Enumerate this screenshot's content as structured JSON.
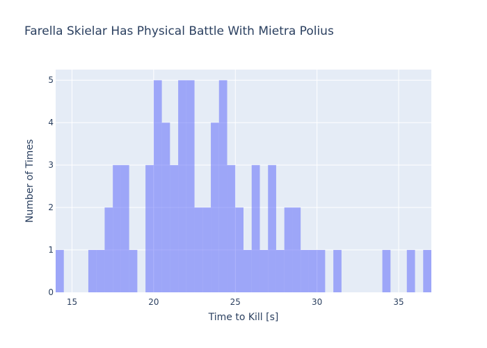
{
  "chart_data": {
    "type": "bar",
    "title": "Farella Skielar Has Physical Battle With Mietra Polius",
    "xlabel": "Time to Kill [s]",
    "ylabel": "Number of Times",
    "xlim": [
      14,
      37
    ],
    "ylim": [
      0,
      5.25
    ],
    "xticks": [
      15,
      20,
      25,
      30,
      35
    ],
    "yticks": [
      0,
      1,
      2,
      3,
      4,
      5
    ],
    "bin_width": 0.5,
    "grid": true,
    "bins": [
      {
        "x0": 14.0,
        "count": 1
      },
      {
        "x0": 16.0,
        "count": 1
      },
      {
        "x0": 16.5,
        "count": 1
      },
      {
        "x0": 17.0,
        "count": 2
      },
      {
        "x0": 17.5,
        "count": 3
      },
      {
        "x0": 18.0,
        "count": 3
      },
      {
        "x0": 18.5,
        "count": 1
      },
      {
        "x0": 19.5,
        "count": 3
      },
      {
        "x0": 20.0,
        "count": 5
      },
      {
        "x0": 20.5,
        "count": 4
      },
      {
        "x0": 21.0,
        "count": 3
      },
      {
        "x0": 21.5,
        "count": 5
      },
      {
        "x0": 22.0,
        "count": 5
      },
      {
        "x0": 22.5,
        "count": 2
      },
      {
        "x0": 23.0,
        "count": 2
      },
      {
        "x0": 23.5,
        "count": 4
      },
      {
        "x0": 24.0,
        "count": 5
      },
      {
        "x0": 24.5,
        "count": 3
      },
      {
        "x0": 25.0,
        "count": 2
      },
      {
        "x0": 25.5,
        "count": 1
      },
      {
        "x0": 26.0,
        "count": 3
      },
      {
        "x0": 26.5,
        "count": 1
      },
      {
        "x0": 27.0,
        "count": 3
      },
      {
        "x0": 27.5,
        "count": 1
      },
      {
        "x0": 28.0,
        "count": 2
      },
      {
        "x0": 28.5,
        "count": 2
      },
      {
        "x0": 29.0,
        "count": 1
      },
      {
        "x0": 29.5,
        "count": 1
      },
      {
        "x0": 30.0,
        "count": 1
      },
      {
        "x0": 31.0,
        "count": 1
      },
      {
        "x0": 34.0,
        "count": 1
      },
      {
        "x0": 35.5,
        "count": 1
      },
      {
        "x0": 36.5,
        "count": 1
      }
    ],
    "colors": {
      "plot_bg": "#e5ecf6",
      "bar": "#636efa",
      "text": "#2a3f5f",
      "grid": "#ffffff"
    }
  }
}
